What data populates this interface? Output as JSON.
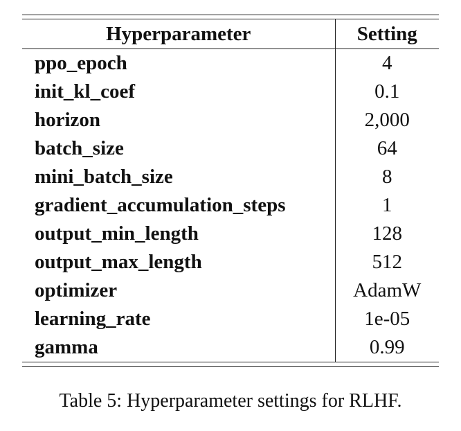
{
  "table": {
    "headers": [
      "Hyperparameter",
      "Setting"
    ],
    "rows": [
      [
        "ppo_epoch",
        "4"
      ],
      [
        "init_kl_coef",
        "0.1"
      ],
      [
        "horizon",
        "2,000"
      ],
      [
        "batch_size",
        "64"
      ],
      [
        "mini_batch_size",
        "8"
      ],
      [
        "gradient_accumulation_steps",
        "1"
      ],
      [
        "output_min_length",
        "128"
      ],
      [
        "output_max_length",
        "512"
      ],
      [
        "optimizer",
        "AdamW"
      ],
      [
        "learning_rate",
        "1e-05"
      ],
      [
        "gamma",
        "0.99"
      ]
    ]
  },
  "caption": "Table 5: Hyperparameter settings for RLHF."
}
